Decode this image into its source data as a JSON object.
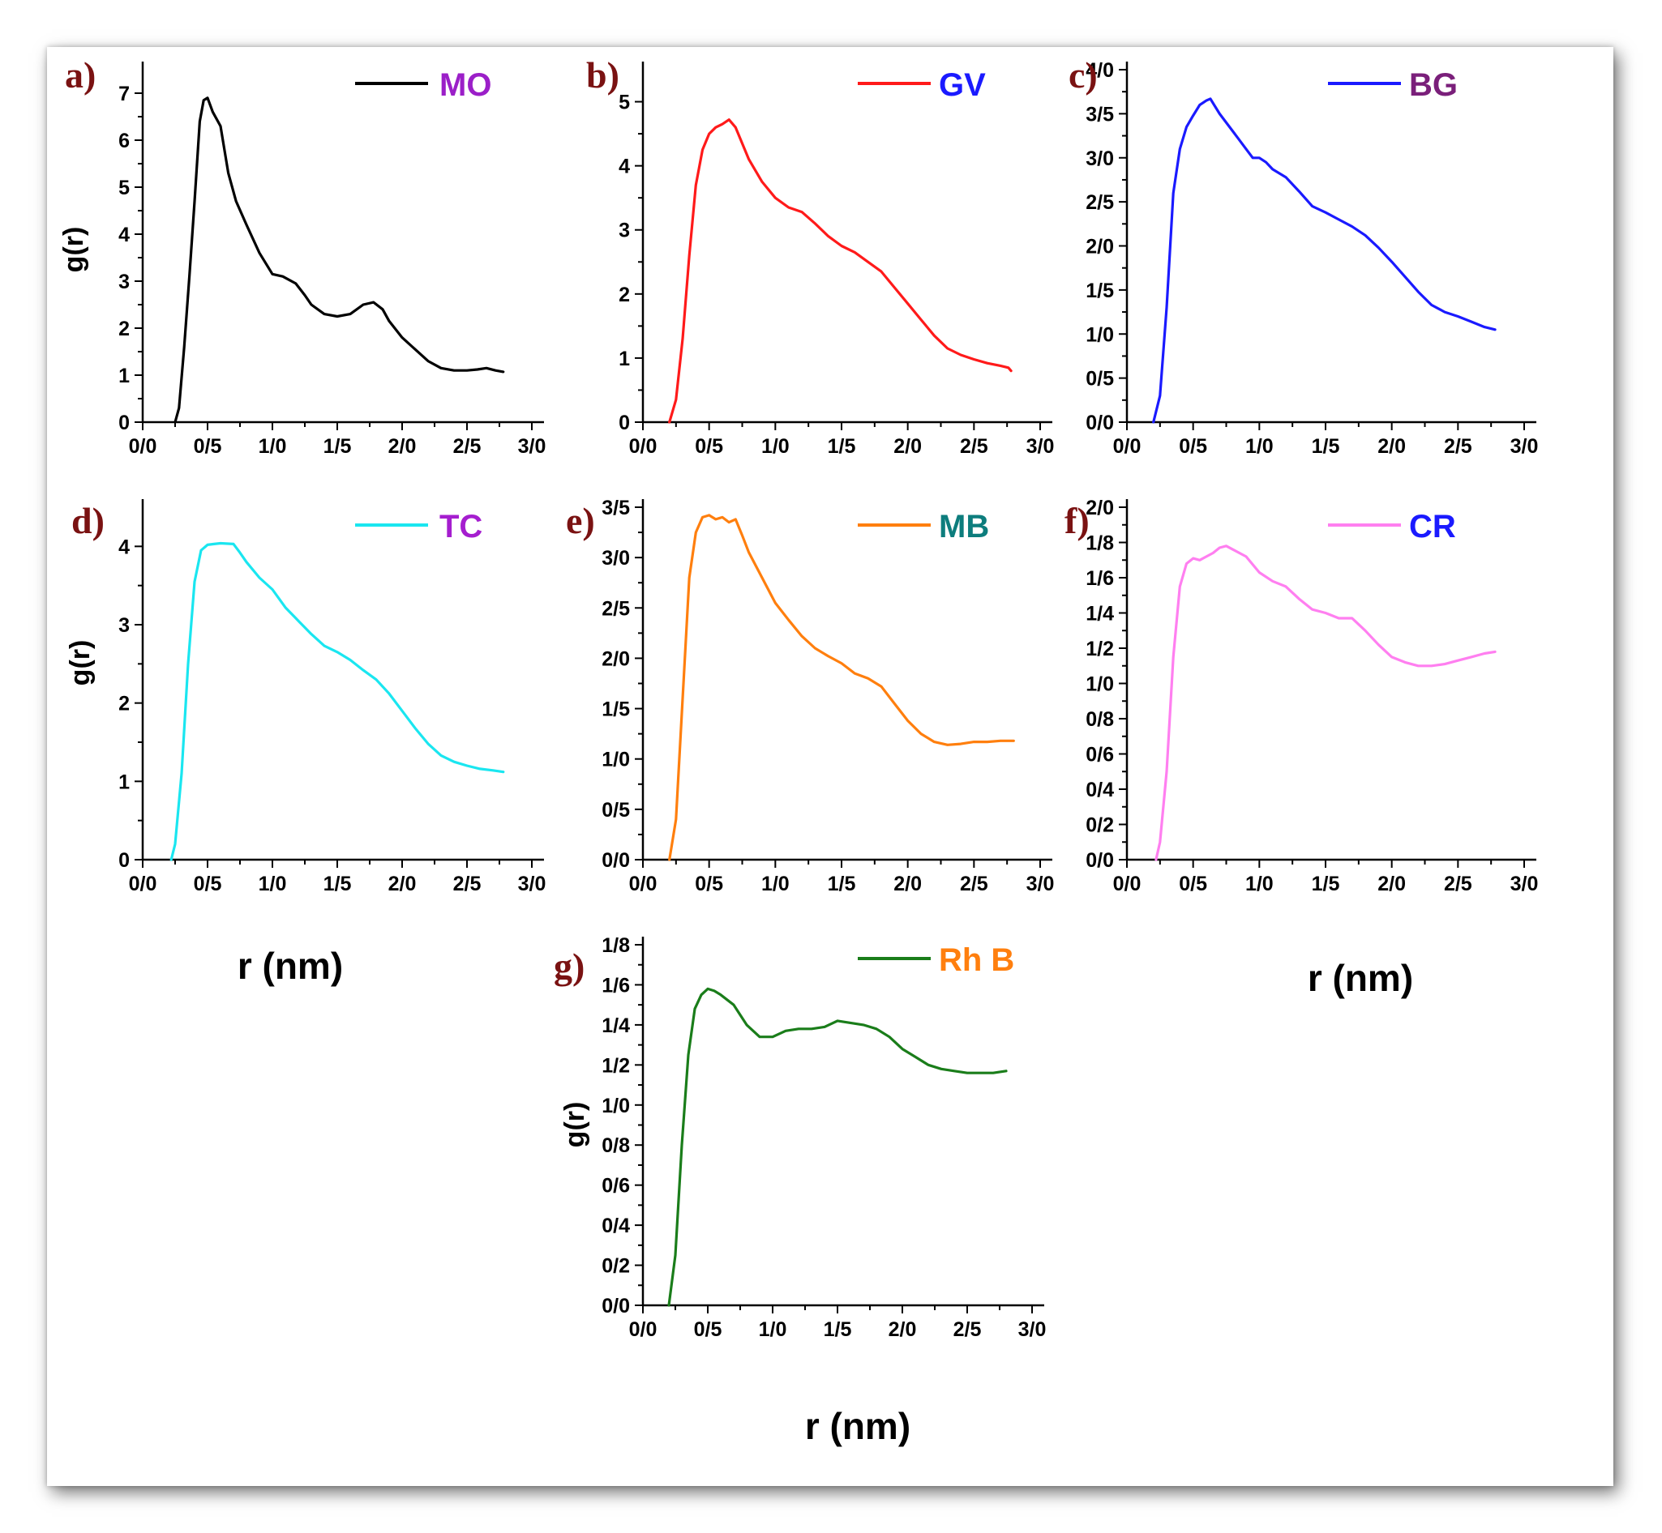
{
  "chart_data": [
    {
      "id": "a",
      "panel_label": "a)",
      "type": "line",
      "series_name": "MO",
      "line_color": "#000000",
      "legend_text_color": "#9b1fc8",
      "ylabel": "g(r)",
      "xlabel": "",
      "xlim": [
        0,
        3
      ],
      "ylim": [
        0,
        7.5
      ],
      "x_ticks": [
        0,
        0.5,
        1,
        1.5,
        2,
        2.5,
        3
      ],
      "x_tick_labels": [
        "0/0",
        "0/5",
        "1/0",
        "1/5",
        "2/0",
        "2/5",
        "3/0"
      ],
      "y_ticks": [
        0,
        1,
        2,
        3,
        4,
        5,
        6,
        7
      ],
      "y_tick_labels": [
        "0",
        "1",
        "2",
        "3",
        "4",
        "5",
        "6",
        "7"
      ],
      "x": [
        0.25,
        0.28,
        0.32,
        0.36,
        0.4,
        0.44,
        0.47,
        0.5,
        0.54,
        0.6,
        0.66,
        0.72,
        0.8,
        0.9,
        1.0,
        1.08,
        1.18,
        1.25,
        1.3,
        1.4,
        1.5,
        1.6,
        1.7,
        1.78,
        1.85,
        1.9,
        2.0,
        2.1,
        2.2,
        2.3,
        2.4,
        2.5,
        2.58,
        2.65,
        2.72,
        2.78
      ],
      "y": [
        0,
        0.3,
        1.6,
        3.1,
        4.7,
        6.4,
        6.85,
        6.9,
        6.6,
        6.3,
        5.3,
        4.7,
        4.2,
        3.6,
        3.15,
        3.1,
        2.95,
        2.7,
        2.5,
        2.3,
        2.25,
        2.3,
        2.5,
        2.55,
        2.4,
        2.15,
        1.8,
        1.55,
        1.3,
        1.15,
        1.1,
        1.1,
        1.12,
        1.15,
        1.1,
        1.07
      ]
    },
    {
      "id": "b",
      "panel_label": "b)",
      "type": "line",
      "series_name": "GV",
      "line_color": "#ff1a1a",
      "legend_text_color": "#1a1aff",
      "ylabel": "",
      "xlabel": "",
      "xlim": [
        0,
        3
      ],
      "ylim": [
        0,
        5.5
      ],
      "x_ticks": [
        0,
        0.5,
        1,
        1.5,
        2,
        2.5,
        3
      ],
      "x_tick_labels": [
        "0/0",
        "0/5",
        "1/0",
        "1/5",
        "2/0",
        "2/5",
        "3/0"
      ],
      "y_ticks": [
        0,
        1,
        2,
        3,
        4,
        5
      ],
      "y_tick_labels": [
        "0",
        "1",
        "2",
        "3",
        "4",
        "5"
      ],
      "x": [
        0.2,
        0.25,
        0.3,
        0.35,
        0.4,
        0.45,
        0.5,
        0.55,
        0.6,
        0.65,
        0.7,
        0.8,
        0.9,
        1.0,
        1.1,
        1.2,
        1.3,
        1.4,
        1.5,
        1.6,
        1.7,
        1.8,
        1.9,
        2.0,
        2.1,
        2.2,
        2.3,
        2.4,
        2.5,
        2.6,
        2.7,
        2.76,
        2.78
      ],
      "y": [
        0,
        0.35,
        1.3,
        2.6,
        3.7,
        4.25,
        4.5,
        4.6,
        4.65,
        4.72,
        4.6,
        4.1,
        3.75,
        3.5,
        3.35,
        3.28,
        3.1,
        2.9,
        2.75,
        2.65,
        2.5,
        2.35,
        2.1,
        1.85,
        1.6,
        1.35,
        1.15,
        1.05,
        0.98,
        0.92,
        0.88,
        0.85,
        0.8
      ]
    },
    {
      "id": "c",
      "panel_label": "c)",
      "type": "line",
      "series_name": "BG",
      "line_color": "#1a1aff",
      "legend_text_color": "#7a1f7a",
      "ylabel": "",
      "xlabel": "",
      "xlim": [
        0,
        3
      ],
      "ylim": [
        0,
        4
      ],
      "x_ticks": [
        0,
        0.5,
        1,
        1.5,
        2,
        2.5,
        3
      ],
      "x_tick_labels": [
        "0/0",
        "0/5",
        "1/0",
        "1/5",
        "2/0",
        "2/5",
        "3/0"
      ],
      "y_ticks": [
        0,
        0.5,
        1,
        1.5,
        2,
        2.5,
        3,
        3.5,
        4
      ],
      "y_tick_labels": [
        "0/0",
        "0/5",
        "1/0",
        "1/5",
        "2/0",
        "2/5",
        "3/0",
        "3/5",
        "4/0"
      ],
      "x": [
        0.2,
        0.25,
        0.3,
        0.35,
        0.4,
        0.45,
        0.5,
        0.55,
        0.6,
        0.63,
        0.7,
        0.8,
        0.9,
        0.95,
        1.0,
        1.05,
        1.1,
        1.2,
        1.3,
        1.4,
        1.5,
        1.6,
        1.7,
        1.8,
        1.9,
        2.0,
        2.1,
        2.2,
        2.3,
        2.4,
        2.5,
        2.6,
        2.7,
        2.78
      ],
      "y": [
        0,
        0.3,
        1.3,
        2.6,
        3.1,
        3.35,
        3.48,
        3.6,
        3.65,
        3.67,
        3.5,
        3.3,
        3.1,
        3.0,
        3.0,
        2.95,
        2.87,
        2.78,
        2.62,
        2.45,
        2.38,
        2.3,
        2.22,
        2.12,
        1.98,
        1.82,
        1.65,
        1.48,
        1.33,
        1.25,
        1.2,
        1.14,
        1.08,
        1.05
      ]
    },
    {
      "id": "d",
      "panel_label": "d)",
      "type": "line",
      "series_name": "TC",
      "line_color": "#1ae6f0",
      "legend_text_color": "#a51ecf",
      "ylabel": "g(r)",
      "xlabel": "r (nm)",
      "xlim": [
        0,
        3
      ],
      "ylim": [
        0,
        4.5
      ],
      "x_ticks": [
        0,
        0.5,
        1,
        1.5,
        2,
        2.5,
        3
      ],
      "x_tick_labels": [
        "0/0",
        "0/5",
        "1/0",
        "1/5",
        "2/0",
        "2/5",
        "3/0"
      ],
      "y_ticks": [
        0,
        1,
        2,
        3,
        4
      ],
      "y_tick_labels": [
        "0",
        "1",
        "2",
        "3",
        "4"
      ],
      "x": [
        0.22,
        0.25,
        0.3,
        0.35,
        0.4,
        0.45,
        0.5,
        0.55,
        0.6,
        0.7,
        0.75,
        0.8,
        0.9,
        1.0,
        1.1,
        1.2,
        1.3,
        1.4,
        1.5,
        1.6,
        1.7,
        1.8,
        1.9,
        2.0,
        2.1,
        2.2,
        2.3,
        2.4,
        2.5,
        2.6,
        2.7,
        2.78
      ],
      "y": [
        0,
        0.2,
        1.1,
        2.5,
        3.55,
        3.95,
        4.02,
        4.03,
        4.04,
        4.03,
        3.92,
        3.8,
        3.6,
        3.45,
        3.22,
        3.05,
        2.88,
        2.73,
        2.65,
        2.55,
        2.42,
        2.3,
        2.12,
        1.9,
        1.68,
        1.48,
        1.33,
        1.25,
        1.2,
        1.16,
        1.14,
        1.12
      ]
    },
    {
      "id": "e",
      "panel_label": "e)",
      "type": "line",
      "series_name": "MB",
      "line_color": "#ff7f0e",
      "legend_text_color": "#0d7d7d",
      "ylabel": "",
      "xlabel": "",
      "xlim": [
        0,
        3
      ],
      "ylim": [
        0,
        3.5
      ],
      "x_ticks": [
        0,
        0.5,
        1,
        1.5,
        2,
        2.5,
        3
      ],
      "x_tick_labels": [
        "0/0",
        "0/5",
        "1/0",
        "1/5",
        "2/0",
        "2/5",
        "3/0"
      ],
      "y_ticks": [
        0,
        0.5,
        1,
        1.5,
        2,
        2.5,
        3,
        3.5
      ],
      "y_tick_labels": [
        "0/0",
        "0/5",
        "1/0",
        "1/5",
        "2/0",
        "2/5",
        "3/0",
        "3/5"
      ],
      "x": [
        0.2,
        0.25,
        0.3,
        0.35,
        0.4,
        0.45,
        0.5,
        0.55,
        0.6,
        0.65,
        0.7,
        0.75,
        0.8,
        0.9,
        1.0,
        1.1,
        1.2,
        1.3,
        1.4,
        1.5,
        1.6,
        1.7,
        1.8,
        1.9,
        2.0,
        2.1,
        2.2,
        2.3,
        2.4,
        2.5,
        2.6,
        2.7,
        2.8
      ],
      "y": [
        0,
        0.4,
        1.6,
        2.8,
        3.25,
        3.4,
        3.42,
        3.38,
        3.4,
        3.35,
        3.38,
        3.22,
        3.05,
        2.8,
        2.55,
        2.38,
        2.22,
        2.1,
        2.02,
        1.95,
        1.85,
        1.8,
        1.72,
        1.55,
        1.38,
        1.25,
        1.17,
        1.14,
        1.15,
        1.17,
        1.17,
        1.18,
        1.18
      ]
    },
    {
      "id": "f",
      "panel_label": "f)",
      "type": "line",
      "series_name": "CR",
      "line_color": "#ff7ff0",
      "legend_text_color": "#1a1aff",
      "ylabel": "",
      "xlabel": "r (nm)",
      "xlim": [
        0,
        3
      ],
      "ylim": [
        0,
        2
      ],
      "x_ticks": [
        0,
        0.5,
        1,
        1.5,
        2,
        2.5,
        3
      ],
      "x_tick_labels": [
        "0/0",
        "0/5",
        "1/0",
        "1/5",
        "2/0",
        "2/5",
        "3/0"
      ],
      "y_ticks": [
        0,
        0.2,
        0.4,
        0.6,
        0.8,
        1.0,
        1.2,
        1.4,
        1.6,
        1.8,
        2.0
      ],
      "y_tick_labels": [
        "0/0",
        "0/2",
        "0/4",
        "0/6",
        "0/8",
        "1/0",
        "1/2",
        "1/4",
        "1/6",
        "1/8",
        "2/0"
      ],
      "x": [
        0.22,
        0.25,
        0.3,
        0.35,
        0.4,
        0.45,
        0.5,
        0.55,
        0.6,
        0.65,
        0.7,
        0.75,
        0.8,
        0.9,
        1.0,
        1.1,
        1.2,
        1.3,
        1.4,
        1.5,
        1.6,
        1.7,
        1.8,
        1.9,
        2.0,
        2.1,
        2.2,
        2.3,
        2.4,
        2.5,
        2.6,
        2.7,
        2.78
      ],
      "y": [
        0,
        0.1,
        0.5,
        1.15,
        1.55,
        1.68,
        1.71,
        1.7,
        1.72,
        1.74,
        1.77,
        1.78,
        1.76,
        1.72,
        1.63,
        1.58,
        1.55,
        1.48,
        1.42,
        1.4,
        1.37,
        1.37,
        1.3,
        1.22,
        1.15,
        1.12,
        1.1,
        1.1,
        1.11,
        1.13,
        1.15,
        1.17,
        1.18
      ]
    },
    {
      "id": "g",
      "panel_label": "g)",
      "type": "line",
      "series_name": "Rh B",
      "line_color": "#1a7d1a",
      "legend_text_color": "#ff7f0e",
      "ylabel": "g(r)",
      "xlabel": "r (nm)",
      "xlim": [
        0,
        3
      ],
      "ylim": [
        0,
        1.8
      ],
      "x_ticks": [
        0,
        0.5,
        1,
        1.5,
        2,
        2.5,
        3
      ],
      "x_tick_labels": [
        "0/0",
        "0/5",
        "1/0",
        "1/5",
        "2/0",
        "2/5",
        "3/0"
      ],
      "y_ticks": [
        0,
        0.2,
        0.4,
        0.6,
        0.8,
        1.0,
        1.2,
        1.4,
        1.6,
        1.8
      ],
      "y_tick_labels": [
        "0/0",
        "0/2",
        "0/4",
        "0/6",
        "0/8",
        "1/0",
        "1/2",
        "1/4",
        "1/6",
        "1/8"
      ],
      "x": [
        0.2,
        0.25,
        0.3,
        0.35,
        0.4,
        0.45,
        0.5,
        0.55,
        0.6,
        0.7,
        0.8,
        0.9,
        1.0,
        1.1,
        1.2,
        1.3,
        1.4,
        1.5,
        1.6,
        1.7,
        1.8,
        1.9,
        2.0,
        2.1,
        2.2,
        2.3,
        2.4,
        2.5,
        2.6,
        2.7,
        2.8
      ],
      "y": [
        0,
        0.25,
        0.8,
        1.25,
        1.48,
        1.55,
        1.58,
        1.57,
        1.55,
        1.5,
        1.4,
        1.34,
        1.34,
        1.37,
        1.38,
        1.38,
        1.39,
        1.42,
        1.41,
        1.4,
        1.38,
        1.34,
        1.28,
        1.24,
        1.2,
        1.18,
        1.17,
        1.16,
        1.16,
        1.16,
        1.17
      ]
    }
  ]
}
